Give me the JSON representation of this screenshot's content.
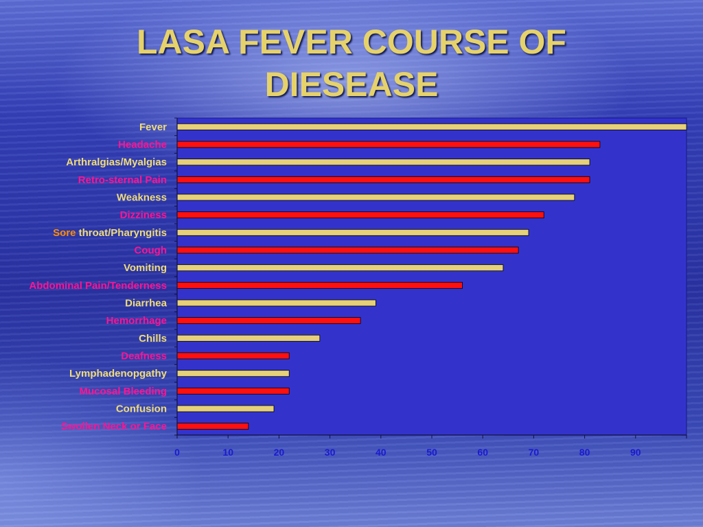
{
  "slide": {
    "title_line1": "LASA FEVER COURSE OF",
    "title_line2": "DIESEASE"
  },
  "colors": {
    "title": "#e6d26a",
    "plot_background": "#3333cc",
    "bar_yellow": "#e6d07a",
    "bar_red": "#ff1010",
    "label_yellow": "#f0dc78",
    "label_magenta": "#ff1493",
    "label_orange": "#ff8c00",
    "axis_tick_labels": "#1a1ad0"
  },
  "chart_data": {
    "type": "bar",
    "orientation": "horizontal",
    "title": "LASA FEVER COURSE OF DIESEASE",
    "xlabel": "",
    "ylabel": "",
    "xlim": [
      0,
      100
    ],
    "xticks": [
      0,
      10,
      20,
      30,
      40,
      50,
      60,
      70,
      80,
      90
    ],
    "grid": false,
    "legend": "none",
    "categories": [
      "Fever",
      "Headache",
      "Arthralgias/Myalgias",
      "Retro-sternal Pain",
      "Weakness",
      "Dizziness",
      "Sore throat/Pharyngitis",
      "Cough",
      "Vomiting",
      "Abdominal Pain/Tenderness",
      "Diarrhea",
      "Hemorrhage",
      "Chills",
      "Deafness",
      "Lymphadenopgathy",
      "Mucosal Bleeding",
      "Confusion",
      "Swollen Neck or Face"
    ],
    "values": [
      100,
      83,
      81,
      81,
      78,
      72,
      69,
      67,
      64,
      56,
      39,
      36,
      28,
      22,
      22,
      22,
      19,
      14
    ],
    "bar_colors": [
      "yellow",
      "red",
      "yellow",
      "red",
      "yellow",
      "red",
      "yellow",
      "red",
      "yellow",
      "red",
      "yellow",
      "red",
      "yellow",
      "red",
      "yellow",
      "red",
      "yellow",
      "red"
    ],
    "label_colors": [
      "yellow",
      "magenta",
      "yellow",
      "magenta",
      "yellow",
      "magenta",
      "orange+yellow",
      "magenta",
      "yellow",
      "magenta",
      "yellow",
      "magenta",
      "yellow",
      "magenta",
      "yellow",
      "magenta",
      "yellow",
      "magenta"
    ]
  }
}
